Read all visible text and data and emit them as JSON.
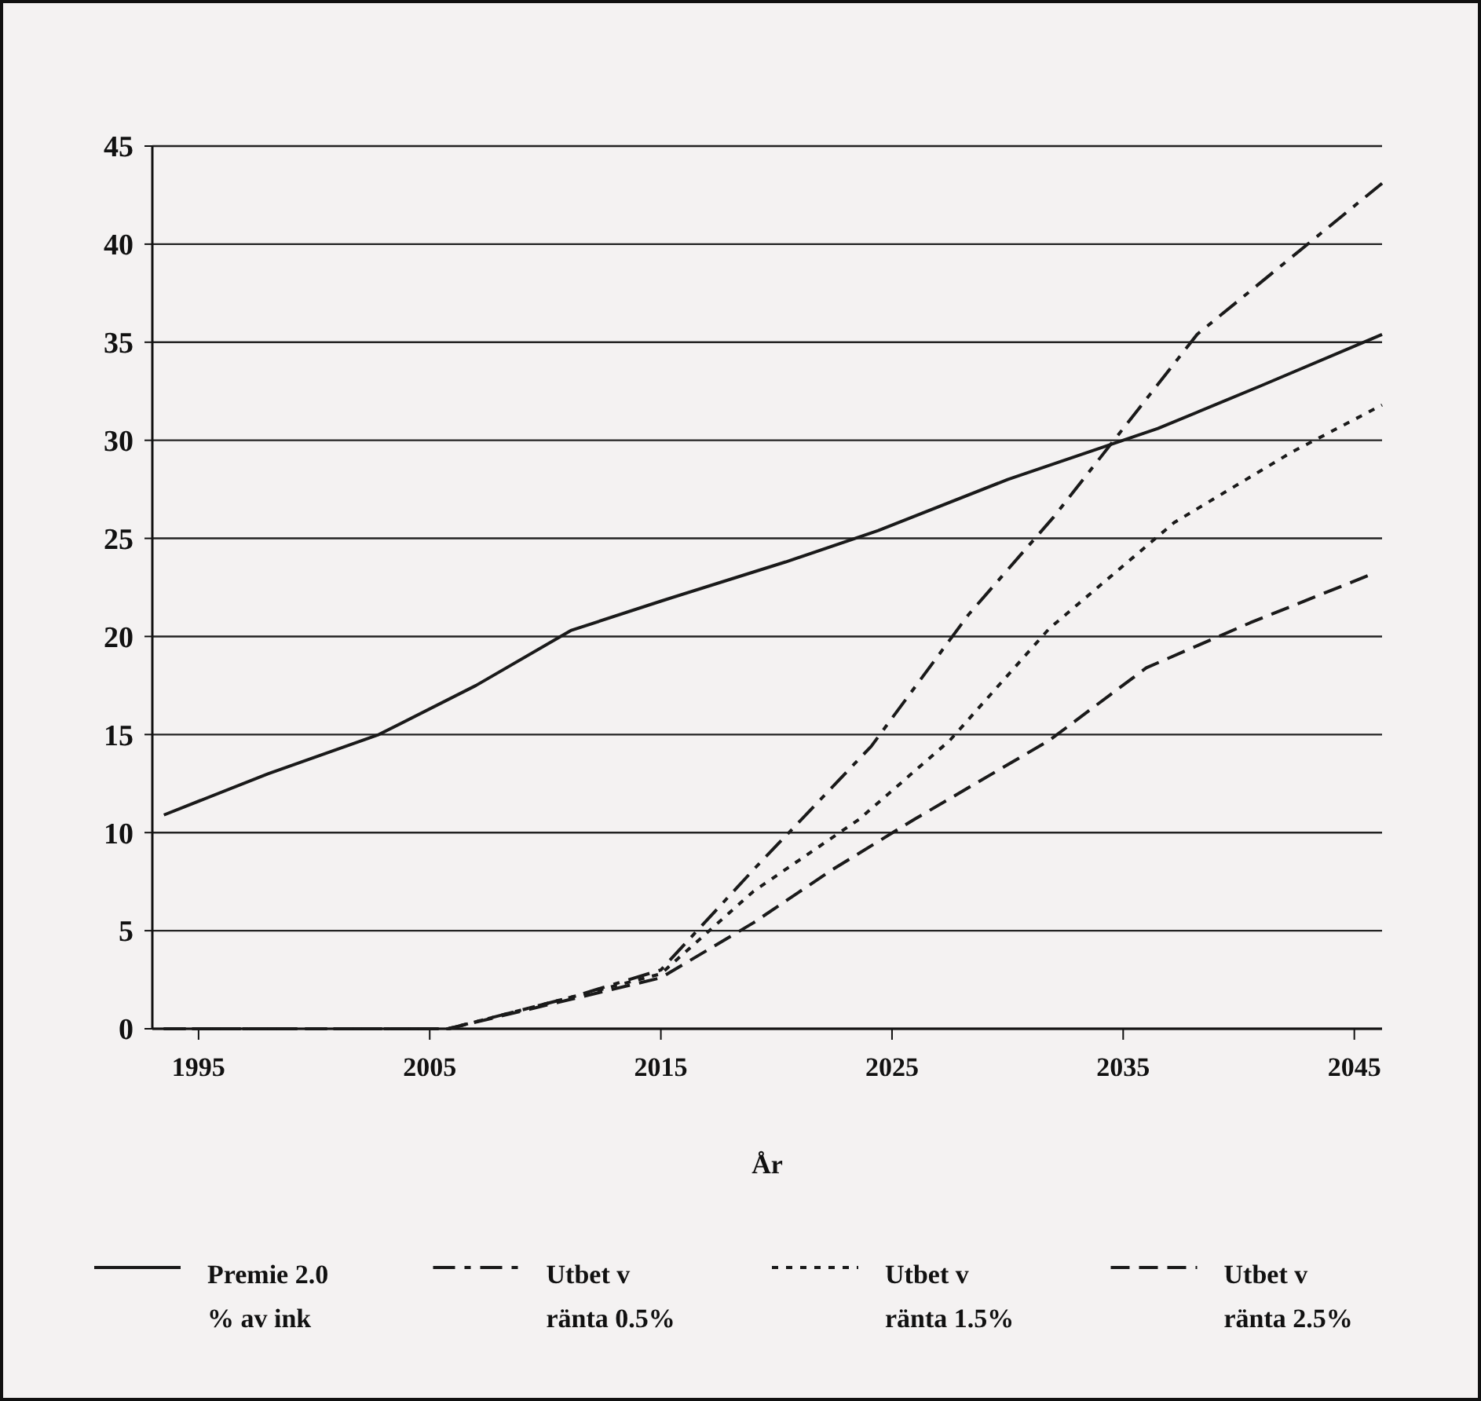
{
  "chart_data": {
    "type": "line",
    "xlabel": "År",
    "xlim": [
      1993,
      2046.2
    ],
    "xticks": [
      1995,
      2005,
      2015,
      2025,
      2035,
      2045
    ],
    "ylim": [
      0,
      45
    ],
    "yticks": [
      0,
      5,
      10,
      15,
      20,
      25,
      30,
      35,
      40,
      45
    ],
    "grid": "y",
    "legend": "bottom",
    "marker": "none",
    "series": [
      {
        "name": "Premie 2.0 % av ink",
        "color": "#1a1a1a",
        "line_style": "solid",
        "x": [
          1993.5,
          1998,
          2002.8,
          2007,
          2011.1,
          2015,
          2020.4,
          2024.4,
          2030,
          2036.5,
          2041,
          2046.2
        ],
        "values": [
          10.9,
          13,
          15,
          17.5,
          20.3,
          21.8,
          23.8,
          25.4,
          28,
          30.6,
          32.8,
          35.4
        ]
      },
      {
        "name": "Utbet v ränta 0.5%",
        "color": "#1a1a1a",
        "line_style": "dashdot",
        "x": [
          1993.5,
          2005.8,
          2011.1,
          2015,
          2019,
          2024.1,
          2028.3,
          2032,
          2038.2,
          2046.2
        ],
        "values": [
          0,
          0,
          1.6,
          3,
          8.1,
          14.4,
          21.1,
          26.1,
          35.4,
          43.1
        ]
      },
      {
        "name": "Utbet v ränta 1.5%",
        "color": "#1a1a1a",
        "line_style": "dotted",
        "x": [
          1993.5,
          2005.8,
          2011.1,
          2015,
          2019,
          2023.6,
          2027.5,
          2031.8,
          2037.2,
          2042.3,
          2046.2
        ],
        "values": [
          0,
          0,
          1.6,
          2.8,
          7,
          10.7,
          14.7,
          20.4,
          25.8,
          29.4,
          31.8
        ]
      },
      {
        "name": "Utbet v ränta 2.5%",
        "color": "#1a1a1a",
        "line_style": "dashed",
        "x": [
          1993.5,
          2005.8,
          2011.1,
          2015,
          2019,
          2022.4,
          2026,
          2031.8,
          2036,
          2040.5,
          2045.8
        ],
        "values": [
          0,
          0,
          1.5,
          2.6,
          5.4,
          8.1,
          10.7,
          14.7,
          18.4,
          20.7,
          23.2
        ]
      }
    ]
  }
}
